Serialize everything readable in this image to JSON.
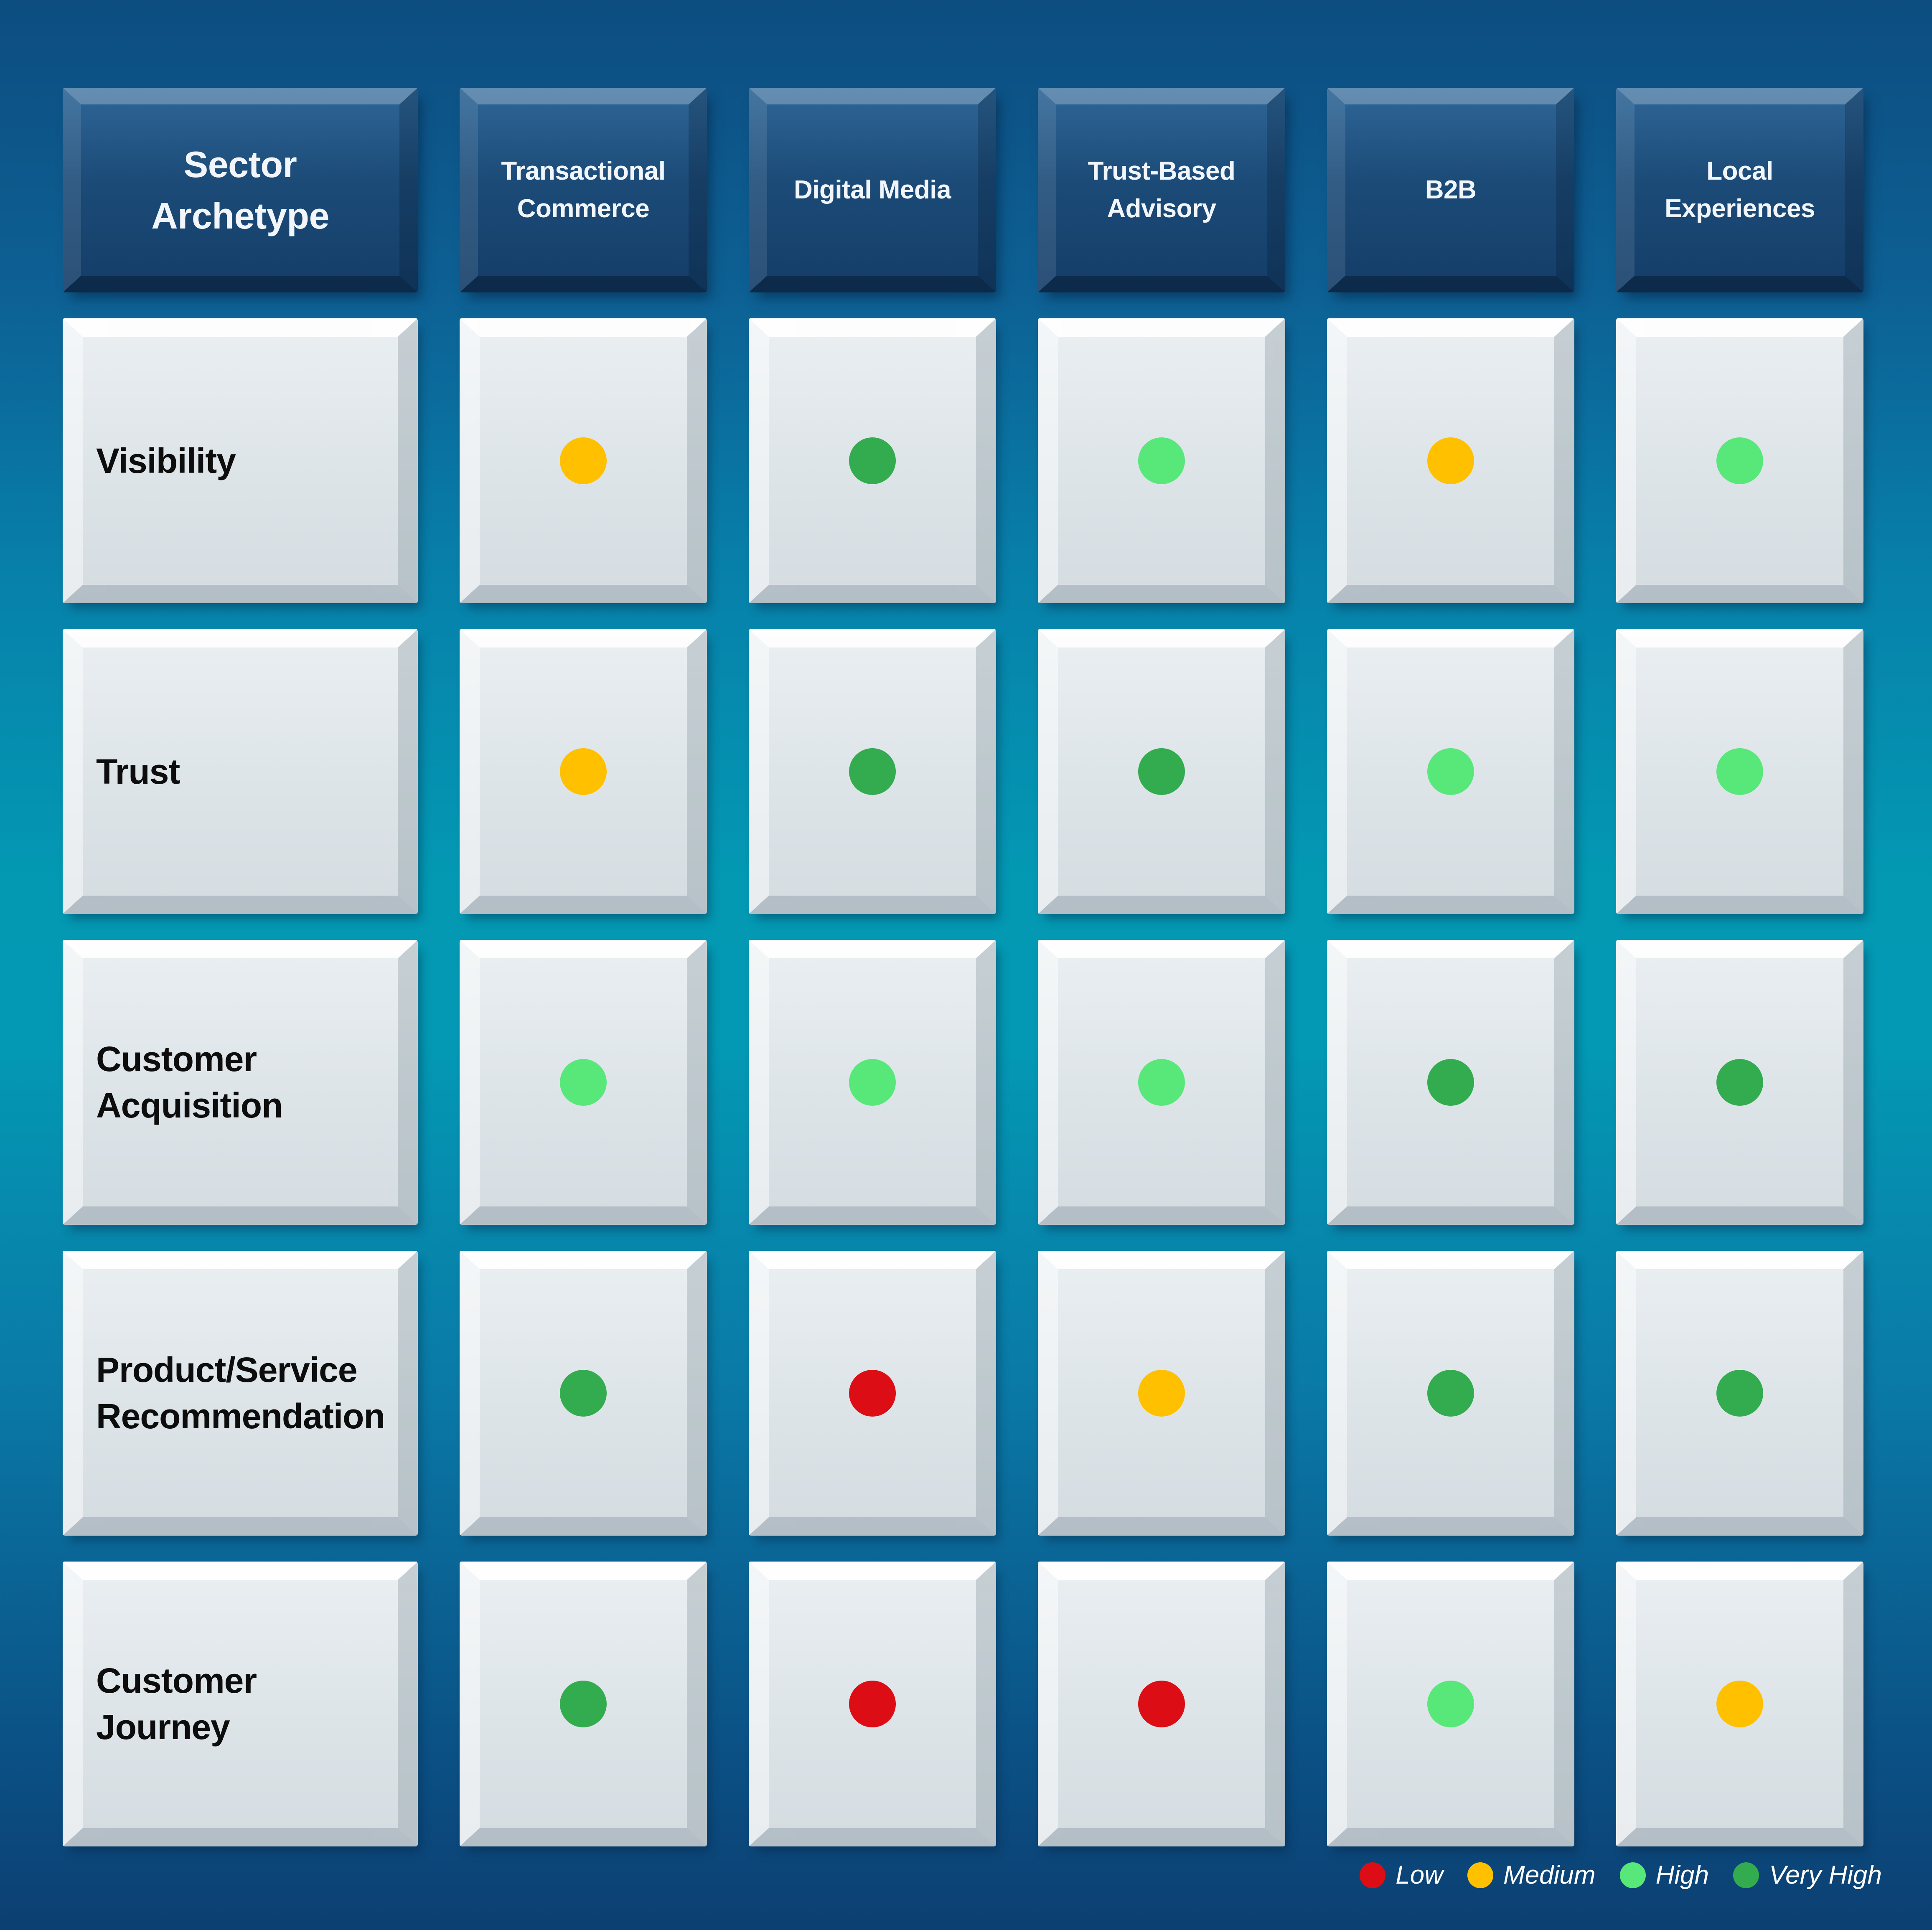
{
  "table": {
    "corner_header": "Sector Archetype",
    "columns": [
      "Transactional Commerce",
      "Digital Media",
      "Trust-Based Advisory",
      "B2B",
      "Local Experiences"
    ],
    "rows": [
      {
        "label": "Visibility",
        "ratings": [
          "medium",
          "very_high",
          "high",
          "medium",
          "high"
        ]
      },
      {
        "label": "Trust",
        "ratings": [
          "medium",
          "very_high",
          "very_high",
          "high",
          "high"
        ]
      },
      {
        "label": "Customer Acquisition",
        "ratings": [
          "high",
          "high",
          "high",
          "very_high",
          "very_high"
        ]
      },
      {
        "label": "Product/Service Recommendation",
        "ratings": [
          "very_high",
          "low",
          "medium",
          "very_high",
          "very_high"
        ]
      },
      {
        "label": "Customer Journey",
        "ratings": [
          "very_high",
          "low",
          "low",
          "high",
          "medium"
        ]
      }
    ]
  },
  "rating_colors": {
    "low": "#DC0D14",
    "medium": "#FFC000",
    "high": "#58E87A",
    "very_high": "#33AB4F"
  },
  "legend": {
    "items": [
      {
        "label": "Low",
        "level": "low"
      },
      {
        "label": "Medium",
        "level": "medium"
      },
      {
        "label": "High",
        "level": "high"
      },
      {
        "label": "Very High",
        "level": "very_high"
      }
    ]
  },
  "chart_data": {
    "type": "table",
    "title": "Sector Archetype rating matrix",
    "columns": [
      "Transactional Commerce",
      "Digital Media",
      "Trust-Based Advisory",
      "B2B",
      "Local Experiences"
    ],
    "row_labels": [
      "Visibility",
      "Trust",
      "Customer Acquisition",
      "Product/Service Recommendation",
      "Customer Journey"
    ],
    "values": [
      [
        "Medium",
        "Very High",
        "High",
        "Medium",
        "High"
      ],
      [
        "Medium",
        "Very High",
        "Very High",
        "High",
        "High"
      ],
      [
        "High",
        "High",
        "High",
        "Very High",
        "Very High"
      ],
      [
        "Very High",
        "Low",
        "Medium",
        "Very High",
        "Very High"
      ],
      [
        "Very High",
        "Low",
        "Low",
        "High",
        "Medium"
      ]
    ],
    "legend_entries": [
      "Low",
      "Medium",
      "High",
      "Very High"
    ],
    "legend_colors": [
      "#DC0D14",
      "#FFC000",
      "#58E87A",
      "#33AB4F"
    ],
    "legend_position": "bottom-right",
    "grid": false
  }
}
